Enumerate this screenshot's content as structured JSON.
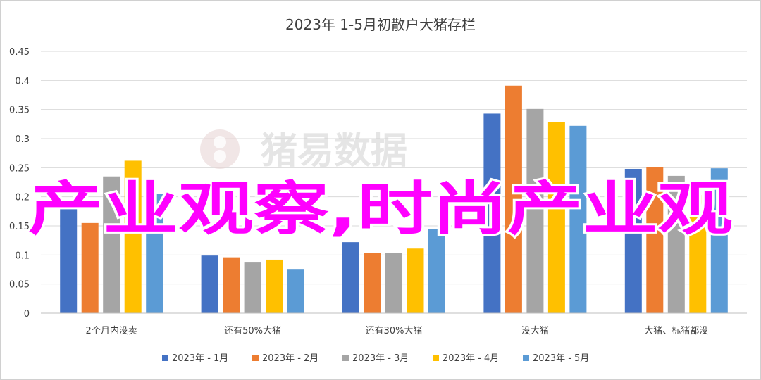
{
  "chart_data": {
    "type": "bar",
    "title": "2023年 1-5月初散户大猪存栏",
    "categories": [
      "2个月内没卖",
      "还有50%大猪",
      "还有30%大猪",
      "没大猪",
      "大猪、标猪都没"
    ],
    "series": [
      {
        "name": "2023年 - 1月",
        "color": "#4472C4",
        "values": [
          0.185,
          0.099,
          0.122,
          0.343,
          0.248
        ]
      },
      {
        "name": "2023年 - 2月",
        "color": "#ED7D31",
        "values": [
          0.155,
          0.096,
          0.104,
          0.391,
          0.251
        ]
      },
      {
        "name": "2023年 - 3月",
        "color": "#A5A5A5",
        "values": [
          0.235,
          0.087,
          0.103,
          0.351,
          0.236
        ]
      },
      {
        "name": "2023年 - 4月",
        "color": "#FFC000",
        "values": [
          0.262,
          0.092,
          0.111,
          0.328,
          0.203
        ]
      },
      {
        "name": "2023年 - 5月",
        "color": "#5B9BD5",
        "values": [
          0.205,
          0.076,
          0.145,
          0.322,
          0.249
        ]
      }
    ],
    "ylim": [
      0,
      0.45
    ],
    "yticks": [
      0,
      0.05,
      0.1,
      0.15,
      0.2,
      0.25,
      0.3,
      0.35,
      0.4,
      0.45
    ],
    "ytick_labels": [
      "0",
      "0.05",
      "0.1",
      "0.15",
      "0.2",
      "0.25",
      "0.3",
      "0.35",
      "0.4",
      "0.45"
    ],
    "grid": true,
    "legend_position": "bottom"
  },
  "watermark": {
    "text": "猪易数据"
  },
  "overlay_text": "产业观察,时尚产业观"
}
